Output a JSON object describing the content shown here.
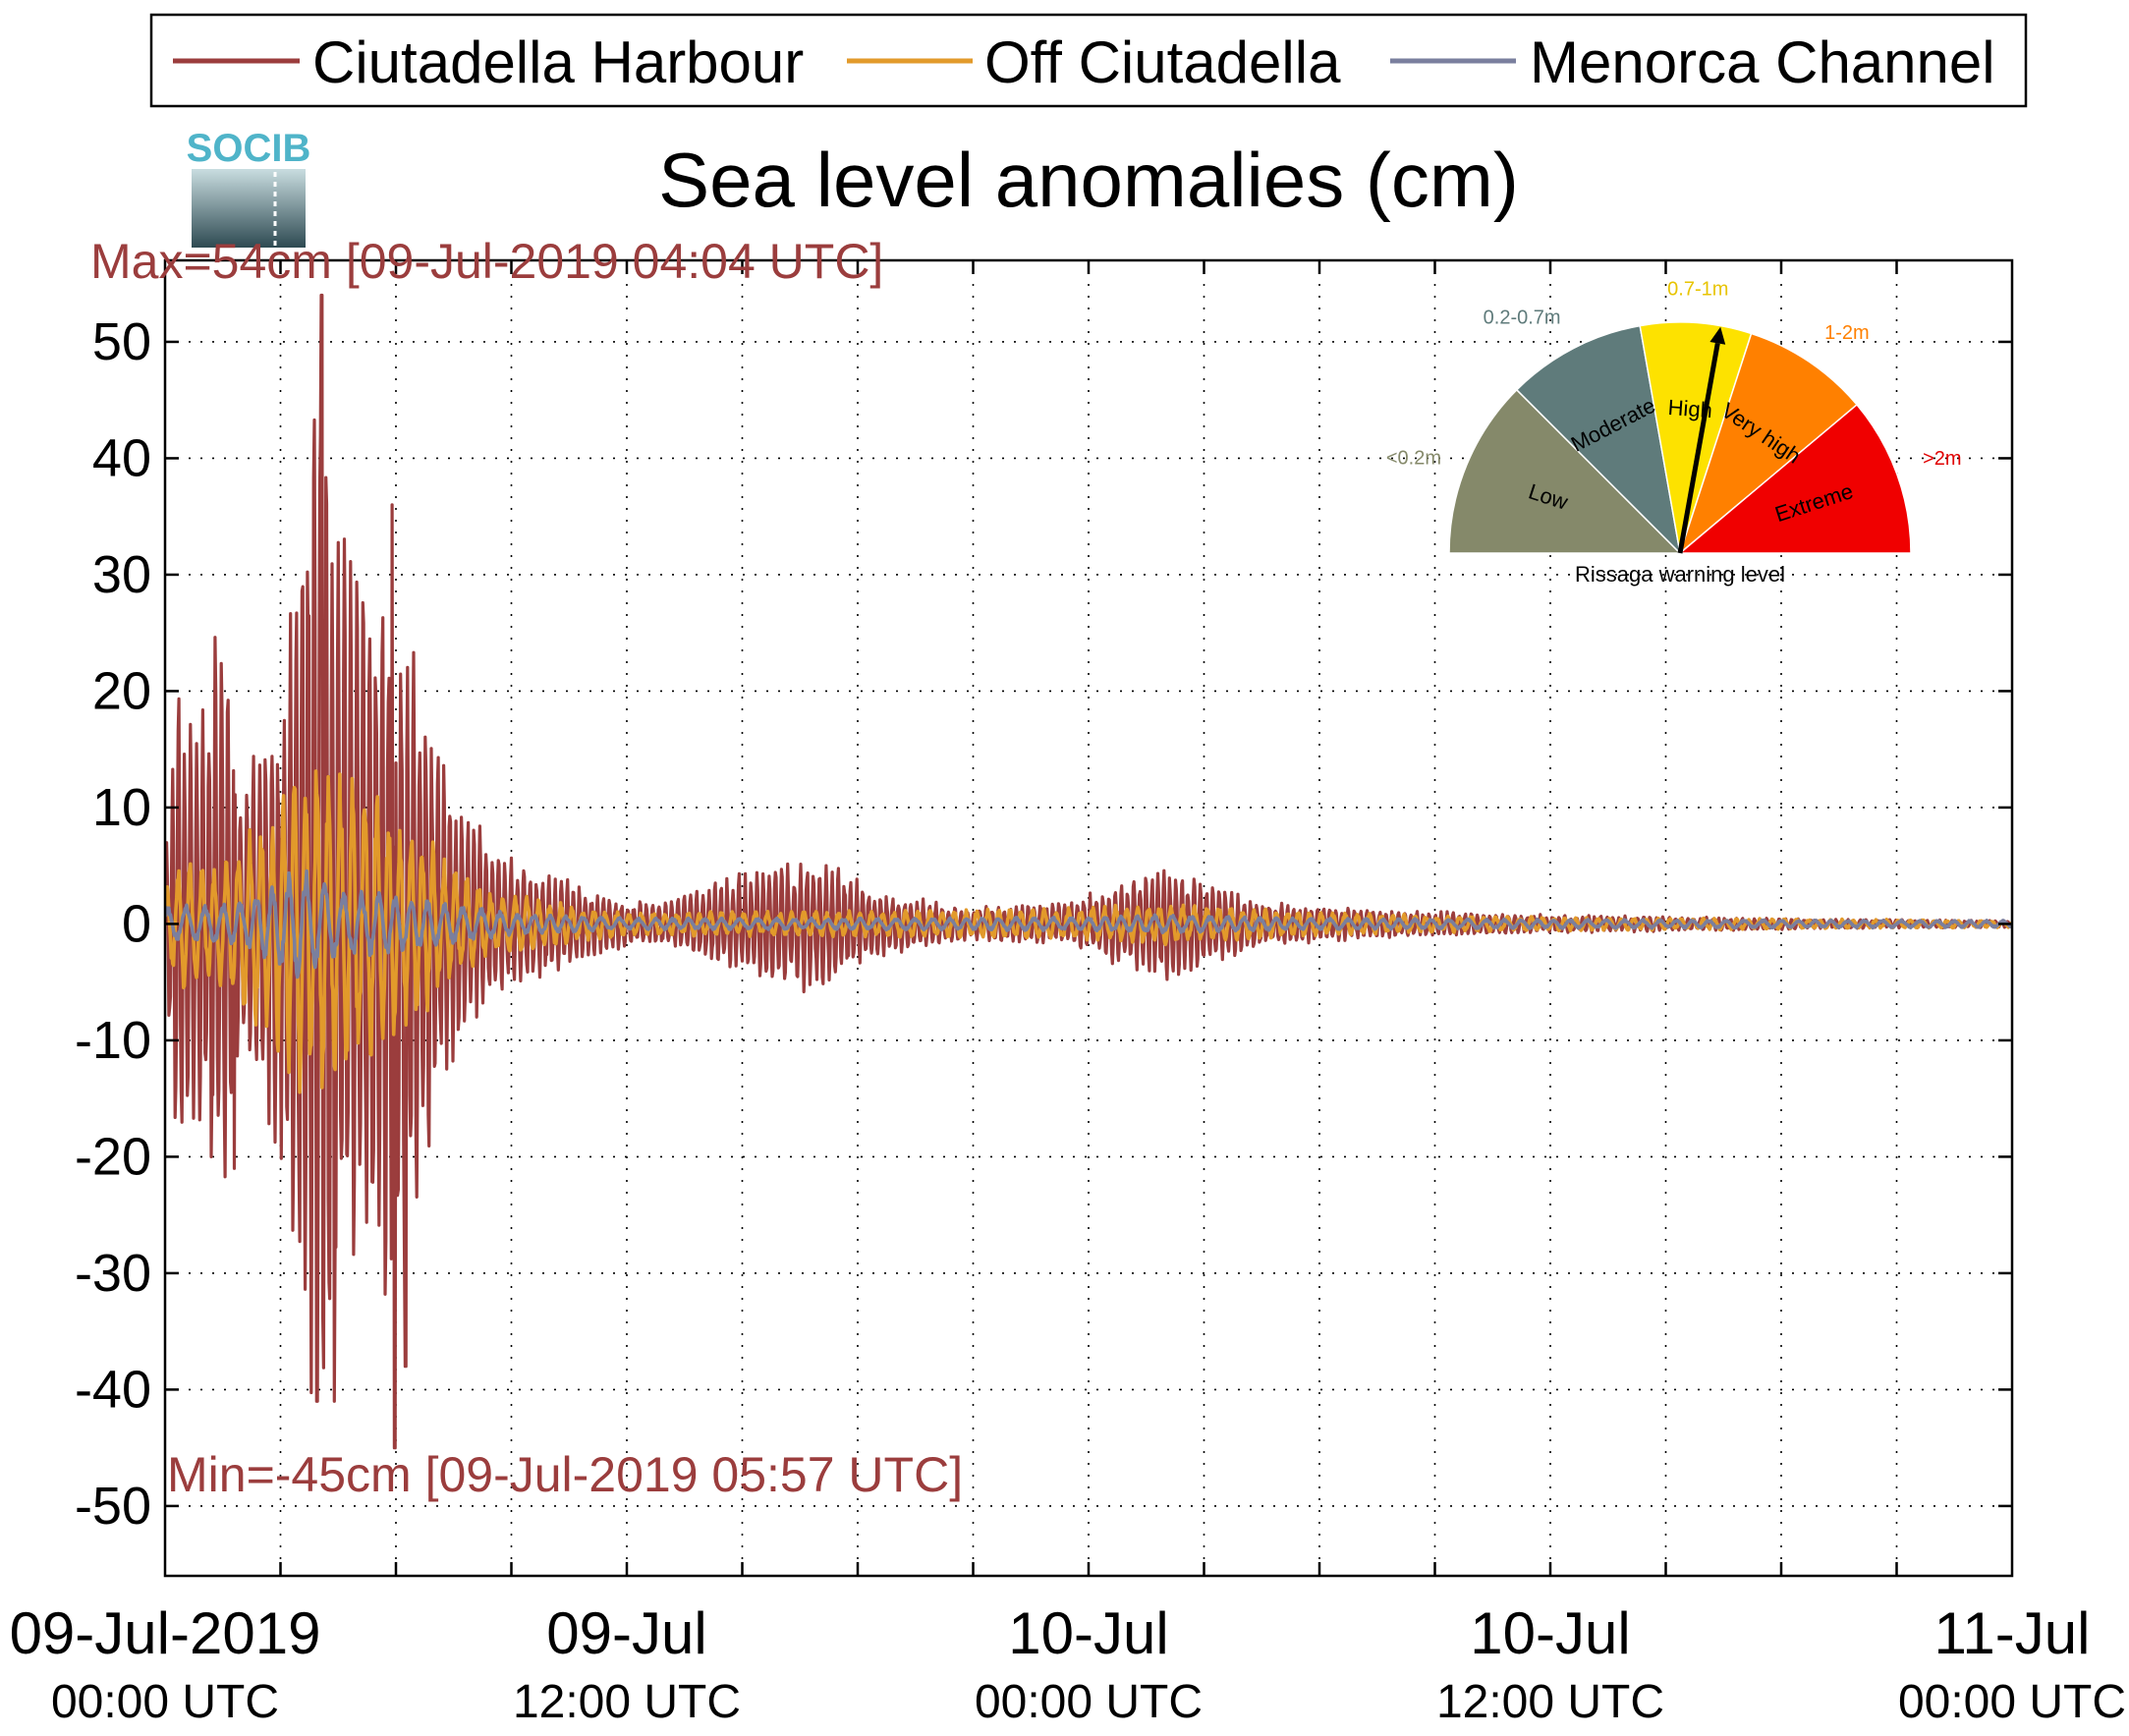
{
  "chart_data": {
    "type": "line",
    "title": "Sea level anomalies (cm)",
    "logo_text": "SOCIB",
    "ylim": [
      -56,
      57
    ],
    "yticks": [
      50,
      40,
      30,
      20,
      10,
      0,
      -10,
      -20,
      -30,
      -40,
      -50
    ],
    "ytick_labels": [
      "50",
      "40",
      "30",
      "20",
      "10",
      "0",
      "-10",
      "-20",
      "-30",
      "-40",
      "-50"
    ],
    "x_unit": "hours since 09-Jul-2019 00:00 UTC",
    "xlim": [
      0,
      48
    ],
    "grid": true,
    "legend_position": "top",
    "xtick_labels": [
      {
        "hour": 0,
        "date": "09-Jul-2019",
        "time": "00:00 UTC"
      },
      {
        "hour": 12,
        "date": "09-Jul",
        "time": "12:00 UTC"
      },
      {
        "hour": 24,
        "date": "10-Jul",
        "time": "00:00 UTC"
      },
      {
        "hour": 36,
        "date": "10-Jul",
        "time": "12:00 UTC"
      },
      {
        "hour": 48,
        "date": "11-Jul",
        "time": "00:00 UTC"
      }
    ],
    "max_annotation": "Max=54cm [09-Jul-2019 04:04 UTC]",
    "min_annotation": "Min=-45cm [09-Jul-2019 05:57 UTC]",
    "series": [
      {
        "name": "Ciutadella Harbour",
        "color": "#9b3d3d",
        "envelope": [
          [
            0,
            5
          ],
          [
            0.3,
            24
          ],
          [
            0.7,
            17
          ],
          [
            1.0,
            20
          ],
          [
            1.5,
            29
          ],
          [
            2.0,
            12
          ],
          [
            2.5,
            18
          ],
          [
            3.0,
            20
          ],
          [
            3.6,
            40
          ],
          [
            4.07,
            54
          ],
          [
            4.5,
            35
          ],
          [
            5.0,
            30
          ],
          [
            5.7,
            37
          ],
          [
            6.2,
            30
          ],
          [
            7.0,
            18
          ],
          [
            7.5,
            12
          ],
          [
            8.5,
            7
          ],
          [
            9.5,
            5
          ],
          [
            10.5,
            4
          ],
          [
            11.0,
            3
          ],
          [
            12.0,
            2
          ],
          [
            13.0,
            2
          ],
          [
            14.5,
            4
          ],
          [
            15.5,
            5
          ],
          [
            16.5,
            6
          ],
          [
            17.5,
            5
          ],
          [
            18.5,
            3
          ],
          [
            20.0,
            2
          ],
          [
            21.0,
            1.5
          ],
          [
            22.0,
            1.6
          ],
          [
            23.5,
            2
          ],
          [
            25.0,
            4
          ],
          [
            26.0,
            5
          ],
          [
            27.0,
            4
          ],
          [
            28.5,
            2
          ],
          [
            30.0,
            1.6
          ],
          [
            32.0,
            1.2
          ],
          [
            34.0,
            1.0
          ],
          [
            36.0,
            0.8
          ],
          [
            40.0,
            0.6
          ],
          [
            44.0,
            0.4
          ],
          [
            48.0,
            0.3
          ]
        ],
        "extremes": [
          [
            1.2,
            -20
          ],
          [
            1.8,
            -21
          ],
          [
            3.95,
            -41
          ],
          [
            4.07,
            54
          ],
          [
            4.4,
            -41
          ],
          [
            5.9,
            36
          ],
          [
            5.97,
            -45
          ],
          [
            6.25,
            -38
          ]
        ]
      },
      {
        "name": "Off Ciutadella",
        "color": "#e29a2b",
        "envelope": [
          [
            0,
            3
          ],
          [
            0.5,
            6
          ],
          [
            1.2,
            5
          ],
          [
            2.0,
            8
          ],
          [
            2.8,
            10
          ],
          [
            3.5,
            16
          ],
          [
            4.2,
            15
          ],
          [
            4.8,
            13
          ],
          [
            5.5,
            12
          ],
          [
            6.3,
            9
          ],
          [
            7.0,
            7
          ],
          [
            7.5,
            5
          ],
          [
            8.5,
            3
          ],
          [
            10.0,
            2
          ],
          [
            12.0,
            1
          ],
          [
            16.0,
            1.1
          ],
          [
            20.0,
            1.2
          ],
          [
            24.0,
            1.5
          ],
          [
            26.0,
            1.8
          ],
          [
            30.0,
            1.0
          ],
          [
            36.0,
            0.6
          ],
          [
            44.0,
            0.4
          ],
          [
            48.0,
            0.3
          ]
        ]
      },
      {
        "name": "Menorca Channel",
        "color": "#7a7f9e",
        "envelope": [
          [
            0,
            1.5
          ],
          [
            2.0,
            2
          ],
          [
            3.5,
            5
          ],
          [
            4.5,
            3
          ],
          [
            5.5,
            3
          ],
          [
            7.0,
            2
          ],
          [
            9.0,
            1
          ],
          [
            12.0,
            0.5
          ],
          [
            18.0,
            0.5
          ],
          [
            24.0,
            0.6
          ],
          [
            26.0,
            0.8
          ],
          [
            30.0,
            0.5
          ],
          [
            36.0,
            0.4
          ],
          [
            48.0,
            0.3
          ]
        ]
      }
    ]
  },
  "gauge": {
    "title": "Rissaga warning level",
    "needle_level_index": 2,
    "needle_fraction": 0.72,
    "sectors": [
      {
        "name": "Low",
        "range": "<0.2m",
        "color": "#85896a",
        "range_color": "#85896a"
      },
      {
        "name": "Moderate",
        "range": "0.2-0.7m",
        "color": "#5f7b7b",
        "range_color": "#5f7b7b"
      },
      {
        "name": "High",
        "range": "0.7-1m",
        "color": "#fde200",
        "range_color": "#e8c400"
      },
      {
        "name": "Very high",
        "range": "1-2m",
        "color": "#ff8000",
        "range_color": "#ff8000"
      },
      {
        "name": "Extreme",
        "range": ">2m",
        "color": "#f00000",
        "range_color": "#e00000"
      }
    ]
  }
}
